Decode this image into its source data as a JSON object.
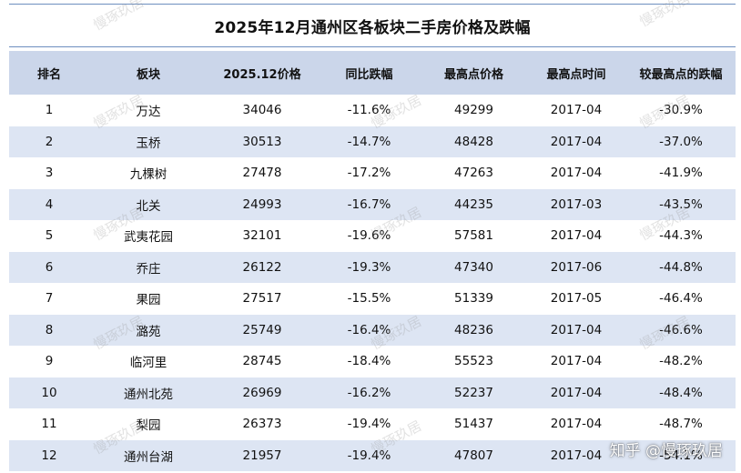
{
  "title": "2025年12月通州区各板块二手房价格及跌幅",
  "headers": [
    "排名",
    "板块",
    "2025.12价格",
    "同比跌幅",
    "最高点价格",
    "最高点时间",
    "较最高点的跌幅"
  ],
  "rows": [
    [
      "1",
      "万达",
      "34046",
      "-11.6%",
      "49299",
      "2017-04",
      "-30.9%"
    ],
    [
      "2",
      "玉桥",
      "30513",
      "-14.7%",
      "48428",
      "2017-04",
      "-37.0%"
    ],
    [
      "3",
      "九棵树",
      "27478",
      "-17.2%",
      "47263",
      "2017-04",
      "-41.9%"
    ],
    [
      "4",
      "北关",
      "24993",
      "-16.7%",
      "44235",
      "2017-03",
      "-43.5%"
    ],
    [
      "5",
      "武夷花园",
      "32101",
      "-19.6%",
      "57581",
      "2017-04",
      "-44.3%"
    ],
    [
      "6",
      "乔庄",
      "26122",
      "-19.3%",
      "47340",
      "2017-06",
      "-44.8%"
    ],
    [
      "7",
      "果园",
      "27517",
      "-15.5%",
      "51339",
      "2017-05",
      "-46.4%"
    ],
    [
      "8",
      "潞苑",
      "25749",
      "-16.4%",
      "48236",
      "2017-04",
      "-46.6%"
    ],
    [
      "9",
      "临河里",
      "28745",
      "-18.4%",
      "55523",
      "2017-04",
      "-48.2%"
    ],
    [
      "10",
      "通州北苑",
      "26969",
      "-16.2%",
      "52237",
      "2017-04",
      "-48.4%"
    ],
    [
      "11",
      "梨园",
      "26373",
      "-19.4%",
      "51437",
      "2017-04",
      "-48.7%"
    ],
    [
      "12",
      "通州台湖",
      "21957",
      "-19.4%",
      "47807",
      "2017-04",
      "-54.1%"
    ]
  ],
  "watermark_text": "慢琢玖居",
  "credit": "知乎 @慢琢玖居",
  "colors": {
    "header_bg": "#cbd6ea",
    "stripe_bg": "#dde5f3",
    "border": "#6e8fbf"
  }
}
